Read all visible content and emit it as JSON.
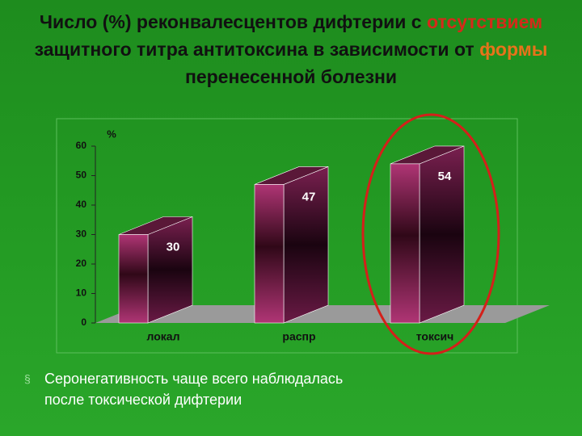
{
  "title_parts": [
    "Число (%) реконвалесцентов дифтерии с ",
    "отсутствием",
    " защитного титра антитоксина в зависимости от ",
    "формы",
    " перенесенной болезни"
  ],
  "title_colors": [
    "#111111",
    "#d42a1a",
    "#111111",
    "#e8731a",
    "#111111"
  ],
  "chart_data": {
    "type": "bar3d",
    "y_unit": "%",
    "categories": [
      "локал",
      "распр",
      "токсич"
    ],
    "values": [
      30,
      47,
      54
    ],
    "ylim": [
      0,
      60
    ],
    "yticks": [
      0,
      10,
      20,
      30,
      40,
      50,
      60
    ],
    "highlight_index": 2,
    "highlight_color": "#d4201a"
  },
  "bullet": {
    "text": "Серонегативность чаще всего наблюдалась после токсической дифтерии"
  }
}
